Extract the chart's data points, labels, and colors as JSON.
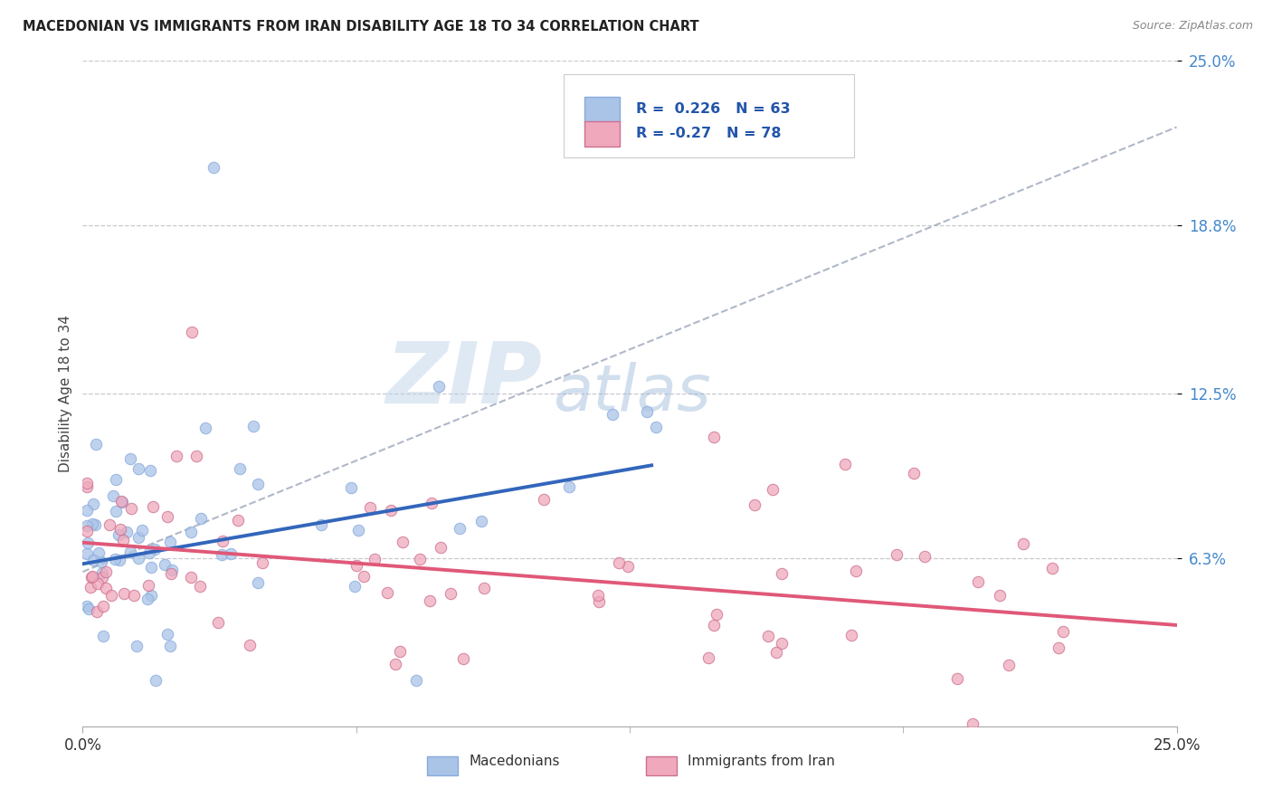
{
  "title": "MACEDONIAN VS IMMIGRANTS FROM IRAN DISABILITY AGE 18 TO 34 CORRELATION CHART",
  "source": "Source: ZipAtlas.com",
  "ylabel": "Disability Age 18 to 34",
  "xlim": [
    0.0,
    0.25
  ],
  "ylim": [
    0.0,
    0.25
  ],
  "xtick_labels": [
    "0.0%",
    "25.0%"
  ],
  "ytick_labels": [
    "6.3%",
    "12.5%",
    "18.8%",
    "25.0%"
  ],
  "ytick_vals": [
    0.063,
    0.125,
    0.188,
    0.25
  ],
  "grid_color": "#c8c8d0",
  "background_color": "#ffffff",
  "macedonian_color": "#aac4e8",
  "iran_color": "#f0a8bc",
  "macedonian_line_color": "#3366bb",
  "iran_line_color": "#e05878",
  "trend_line_color": "#b0b8c8",
  "R_macedonian": 0.226,
  "N_macedonian": 63,
  "R_iran": -0.27,
  "N_iran": 78,
  "watermark_zip": "ZIP",
  "watermark_atlas": "atlas",
  "macedonian_trend_x0": 0.0,
  "macedonian_trend_y0": 0.061,
  "macedonian_trend_x1": 0.13,
  "macedonian_trend_y1": 0.098,
  "iran_trend_x0": 0.0,
  "iran_trend_y0": 0.069,
  "iran_trend_x1": 0.25,
  "iran_trend_y1": 0.038,
  "gray_trend_x0": 0.0,
  "gray_trend_y0": 0.058,
  "gray_trend_x1": 0.25,
  "gray_trend_y1": 0.225
}
